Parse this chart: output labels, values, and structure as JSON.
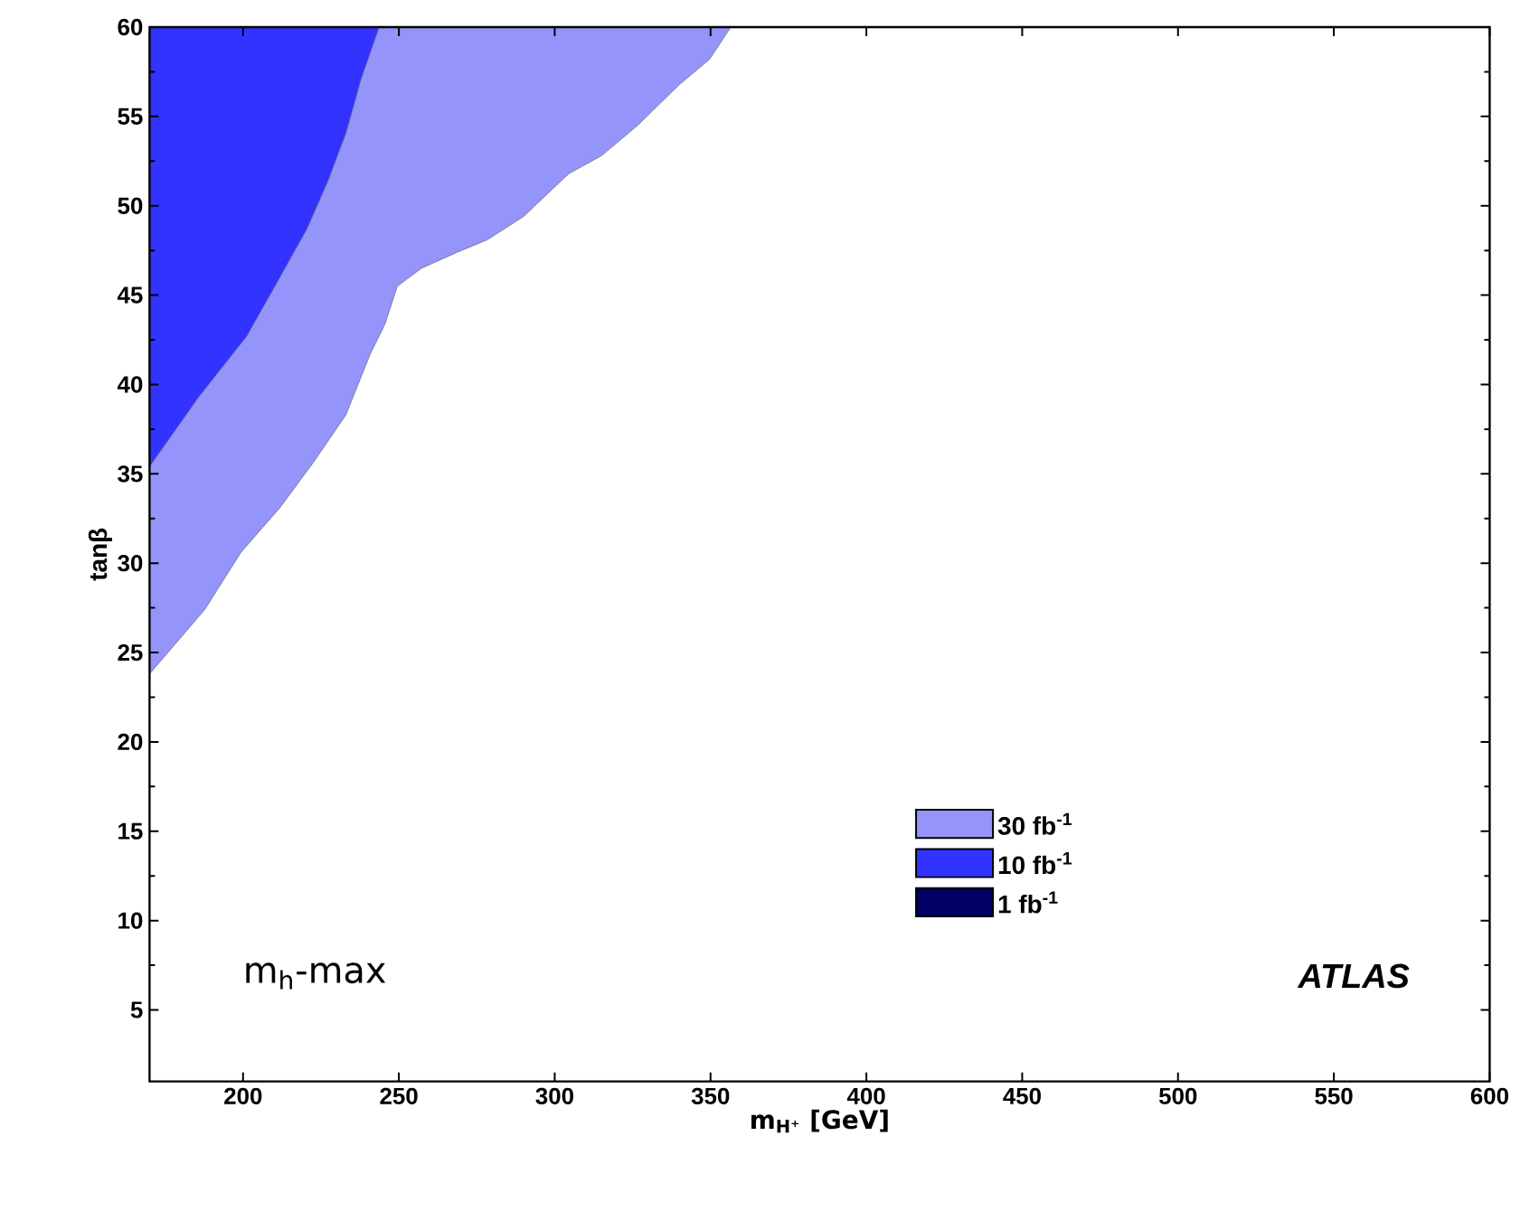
{
  "chart_data": {
    "type": "area",
    "xlabel": "m$_{H⁺}$ [GeV]",
    "ylabel": "tanβ",
    "xlim": [
      170,
      600
    ],
    "ylim": [
      1,
      60
    ],
    "xticks": [
      200,
      250,
      300,
      350,
      400,
      450,
      500,
      550,
      600
    ],
    "yticks": [
      5,
      10,
      15,
      20,
      25,
      30,
      35,
      40,
      45,
      50,
      55,
      60
    ],
    "legend": "bottom right",
    "annotations": [
      "m$_{h}$-max",
      "ATLAS"
    ],
    "series": [
      {
        "name": "30 fb$^{-1}$",
        "color": "#9494fb",
        "x": [
          170,
          187.7,
          199.3,
          211.8,
          222.4,
          233,
          240.8,
          245.6,
          249.5,
          257.2,
          268.7,
          278.4,
          290,
          304.5,
          315,
          326.6,
          340.1,
          349.7,
          356.5,
          170
        ],
        "values": [
          23.8,
          27.4,
          30.6,
          33.1,
          35.6,
          38.3,
          41.7,
          43.4,
          45.5,
          46.5,
          47.4,
          48.1,
          49.4,
          51.8,
          52.8,
          54.5,
          56.8,
          58.2,
          60,
          60
        ]
      },
      {
        "name": "10 fb$^{-1}$",
        "color": "#3333ff",
        "x": [
          170,
          185.8,
          201.2,
          210.9,
          220.5,
          227.3,
          233.1,
          237.9,
          243.7,
          170
        ],
        "values": [
          35.4,
          39.3,
          42.7,
          45.7,
          48.7,
          51.4,
          54.1,
          57.1,
          60,
          60
        ]
      },
      {
        "name": "1 fb$^{-1}$",
        "color": "#000066"
      }
    ]
  }
}
